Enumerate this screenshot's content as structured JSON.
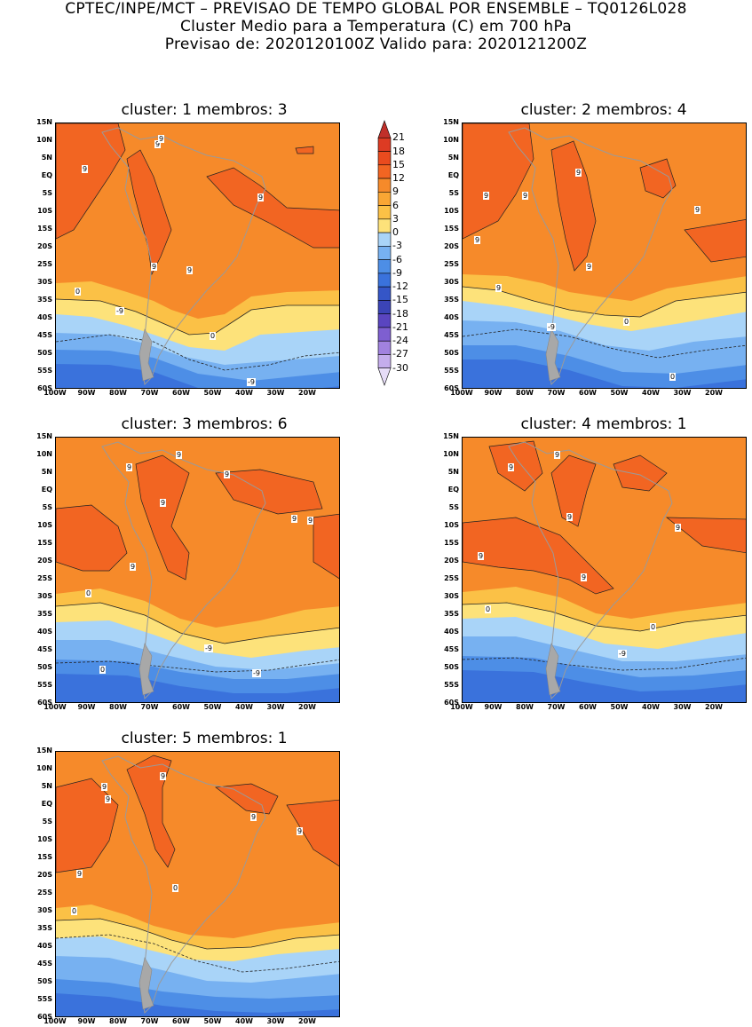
{
  "header": {
    "line1": "CPTEC/INPE/MCT – PREVISAO DE TEMPO GLOBAL POR ENSEMBLE – TQ0126L028",
    "line2": "Cluster Medio para a Temperatura (C) em 700 hPa",
    "line3": "Previsao de: 2020120100Z   Valido para: 2020121200Z"
  },
  "panels": [
    {
      "title": "cluster: 1   membros: 3"
    },
    {
      "title": "cluster: 2   membros: 4"
    },
    {
      "title": "cluster: 3   membros: 6"
    },
    {
      "title": "cluster: 4   membros: 1"
    },
    {
      "title": "cluster: 5   membros: 1"
    }
  ],
  "lat_labels": [
    "15N",
    "10N",
    "5N",
    "EQ",
    "5S",
    "10S",
    "15S",
    "20S",
    "25S",
    "30S",
    "35S",
    "40S",
    "45S",
    "50S",
    "55S",
    "60S"
  ],
  "lon_labels": [
    "100W",
    "90W",
    "80W",
    "70W",
    "60W",
    "50W",
    "40W",
    "30W",
    "20W"
  ],
  "colorbar": {
    "labels": [
      "21",
      "18",
      "15",
      "12",
      "9",
      "6",
      "3",
      "0",
      "-3",
      "-6",
      "-9",
      "-12",
      "-15",
      "-18",
      "-21",
      "-24",
      "-27",
      "-30"
    ],
    "colors": [
      "#c0302a",
      "#dd3b23",
      "#ea4b1e",
      "#f26522",
      "#f68a2a",
      "#f9a634",
      "#fbc146",
      "#fde27a",
      "#a9d4f8",
      "#77b1f1",
      "#4d8ee6",
      "#3a72dc",
      "#3556c7",
      "#3b44b7",
      "#5a45c0",
      "#7e5fd0",
      "#a182df",
      "#c4adec",
      "#e6dcf7"
    ]
  },
  "contour_labels": {
    "p1": [
      "9",
      "9",
      "9",
      "9",
      "9",
      "9",
      "0",
      "-9",
      "0",
      "-9"
    ],
    "p2": [
      "9",
      "9",
      "9",
      "9",
      "9",
      "9",
      "9",
      "0",
      "-9",
      "0",
      "-9"
    ],
    "p3": [
      "9",
      "9",
      "9",
      "9",
      "9",
      "9",
      "9",
      "0",
      "-9",
      "0",
      "-9"
    ],
    "p4": [
      "9",
      "9",
      "9",
      "9",
      "9",
      "9",
      "0",
      "0",
      "-9"
    ],
    "p5": [
      "9",
      "9",
      "9",
      "9",
      "9",
      "9",
      "0",
      "0"
    ]
  }
}
